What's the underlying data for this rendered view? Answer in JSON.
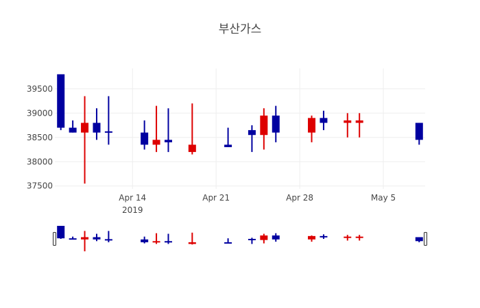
{
  "chart_data": {
    "type": "candlestick",
    "title": "부산가스",
    "xlabel": "",
    "ylabel": "",
    "ylim": [
      37440,
      39920
    ],
    "xlim": [
      "2019-04-07T12:00",
      "2019-05-08T12:00"
    ],
    "grid": true,
    "increasing_color": "#dd0000",
    "decreasing_color": "#0000a0",
    "y_ticks": [
      37500,
      38000,
      38500,
      39000,
      39500
    ],
    "y_tick_labels": [
      "37500",
      "38000",
      "38500",
      "39000",
      "39500"
    ],
    "x_ticks": [
      {
        "date": "2019-04-14",
        "label": "Apr 14",
        "sublabel": "2019"
      },
      {
        "date": "2019-04-21",
        "label": "Apr 21",
        "sublabel": ""
      },
      {
        "date": "2019-04-28",
        "label": "Apr 28",
        "sublabel": ""
      },
      {
        "date": "2019-05-05",
        "label": "May 5",
        "sublabel": ""
      }
    ],
    "rangeslider": true,
    "candles": [
      {
        "date": "2019-04-08",
        "open": 39800,
        "high": 39800,
        "low": 38650,
        "close": 38700
      },
      {
        "date": "2019-04-09",
        "open": 38700,
        "high": 38850,
        "low": 38600,
        "close": 38600
      },
      {
        "date": "2019-04-10",
        "open": 38600,
        "high": 39350,
        "low": 37550,
        "close": 38800
      },
      {
        "date": "2019-04-11",
        "open": 38800,
        "high": 39100,
        "low": 38450,
        "close": 38600
      },
      {
        "date": "2019-04-12",
        "open": 38625,
        "high": 39350,
        "low": 38350,
        "close": 38600
      },
      {
        "date": "2019-04-15",
        "open": 38600,
        "high": 38850,
        "low": 38250,
        "close": 38350
      },
      {
        "date": "2019-04-16",
        "open": 38350,
        "high": 39150,
        "low": 38200,
        "close": 38450
      },
      {
        "date": "2019-04-17",
        "open": 38450,
        "high": 39100,
        "low": 38200,
        "close": 38400
      },
      {
        "date": "2019-04-19",
        "open": 38200,
        "high": 39200,
        "low": 38150,
        "close": 38350
      },
      {
        "date": "2019-04-22",
        "open": 38350,
        "high": 38700,
        "low": 38300,
        "close": 38300
      },
      {
        "date": "2019-04-24",
        "open": 38650,
        "high": 38750,
        "low": 38200,
        "close": 38550
      },
      {
        "date": "2019-04-25",
        "open": 38550,
        "high": 39100,
        "low": 38250,
        "close": 38950
      },
      {
        "date": "2019-04-26",
        "open": 38950,
        "high": 39150,
        "low": 38400,
        "close": 38600
      },
      {
        "date": "2019-04-29",
        "open": 38600,
        "high": 38950,
        "low": 38400,
        "close": 38900
      },
      {
        "date": "2019-04-30",
        "open": 38900,
        "high": 39050,
        "low": 38650,
        "close": 38800
      },
      {
        "date": "2019-05-02",
        "open": 38800,
        "high": 39000,
        "low": 38500,
        "close": 38850
      },
      {
        "date": "2019-05-03",
        "open": 38800,
        "high": 39000,
        "low": 38500,
        "close": 38850
      },
      {
        "date": "2019-05-08",
        "open": 38800,
        "high": 38800,
        "low": 38350,
        "close": 38450
      }
    ]
  }
}
